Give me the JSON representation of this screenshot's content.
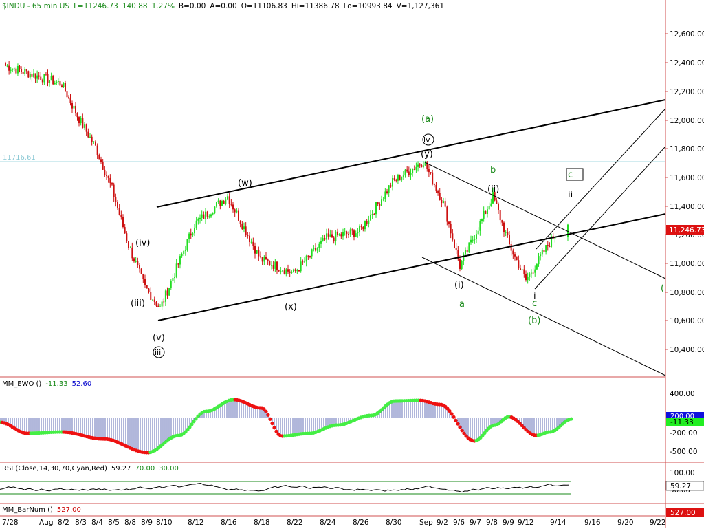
{
  "header": {
    "symbol": "$INDU - 65 min  US",
    "last": "L=11246.73",
    "change": "140.88",
    "change_pct": "1.27%",
    "bid": "B=0.00",
    "ask": "A=0.00",
    "open": "O=11106.83",
    "high": "Hi=11386.78",
    "low": "Lo=10993.84",
    "volume": "V=1,127,361"
  },
  "colors": {
    "up": "#22dd22",
    "down": "#cc1111",
    "text_green": "#1a8a1a",
    "text_red": "#cc0000",
    "text_blue": "#0000cc",
    "ref_line": "#a6d8e0"
  },
  "price_axis": {
    "ticks": [
      "12,600.00",
      "12,400.00",
      "12,200.00",
      "12,000.00",
      "11,800.00",
      "11,600.00",
      "11,400.00",
      "11,200.00",
      "11,000.00",
      "10,800.00",
      "10,600.00",
      "10,400.00"
    ],
    "last_label": "11,246.73",
    "ref_label": "11716.61"
  },
  "x_axis": {
    "labels": [
      "7/28",
      "Aug",
      "8/2",
      "8/3",
      "8/4",
      "8/5",
      "8/8",
      "8/9",
      "8/10",
      "8/12",
      "8/16",
      "8/18",
      "8/22",
      "8/24",
      "8/26",
      "8/30",
      "Sep",
      "9/2",
      "9/6",
      "9/7",
      "9/8",
      "9/9",
      "9/12",
      "9/14",
      "9/16",
      "9/20",
      "9/22"
    ]
  },
  "wave_labels": [
    "(a)",
    "iv",
    "(y)",
    "b",
    "(w)",
    "(ii)",
    "c",
    "ii",
    "(iv)",
    "(iii)",
    "(x)",
    "(i)",
    "a",
    "i",
    "c",
    "(b)",
    "(v)",
    "iii",
    "("
  ],
  "ewo": {
    "title": "MM_EWO ()",
    "val1": "-11.33",
    "val2": "52.60",
    "ticks": [
      "400.00",
      "-200.00",
      "-500.00"
    ],
    "hidden_tick": "200.00",
    "current_label": "-11.33"
  },
  "rsi": {
    "title": "RSI (Close,14,30,70,Cyan,Red)",
    "value": "59.27",
    "upper": "70.00",
    "lower": "30.00",
    "ticks": [
      "100.00",
      "50.00"
    ],
    "current_label": "59.27"
  },
  "barnum": {
    "title": "MM_BarNum ()",
    "value": "527.00",
    "current_label": "527.00"
  },
  "chart_data": {
    "type": "candlestick",
    "title": "$INDU - 65 min",
    "ylim": [
      10200,
      12800
    ],
    "reference_level": 11716.61,
    "last": 11246.73,
    "open": 11106.83,
    "high": 11386.78,
    "low": 10993.84,
    "path_points": [
      {
        "date": "7/28",
        "price": 12380
      },
      {
        "date": "8/2",
        "price": 12250
      },
      {
        "date": "8/3",
        "price": 12000
      },
      {
        "date": "8/4",
        "price": 11800
      },
      {
        "date": "8/5",
        "price": 11500
      },
      {
        "date": "8/8",
        "price": 11100
      },
      {
        "date": "8/9",
        "price": 10800
      },
      {
        "date": "8/10",
        "price": 10650
      },
      {
        "date": "8/12",
        "price": 11250
      },
      {
        "date": "8/16",
        "price": 11450
      },
      {
        "date": "8/18",
        "price": 11000
      },
      {
        "date": "8/22",
        "price": 10900
      },
      {
        "date": "8/24",
        "price": 11150
      },
      {
        "date": "8/26",
        "price": 11200
      },
      {
        "date": "8/30",
        "price": 11550
      },
      {
        "date": "Sep",
        "price": 11700
      },
      {
        "date": "9/2",
        "price": 11400
      },
      {
        "date": "9/6",
        "price": 10950
      },
      {
        "date": "9/7",
        "price": 11200
      },
      {
        "date": "9/8",
        "price": 11450
      },
      {
        "date": "9/9",
        "price": 11100
      },
      {
        "date": "9/12",
        "price": 10850
      },
      {
        "date": "9/14",
        "price": 11200
      }
    ]
  }
}
